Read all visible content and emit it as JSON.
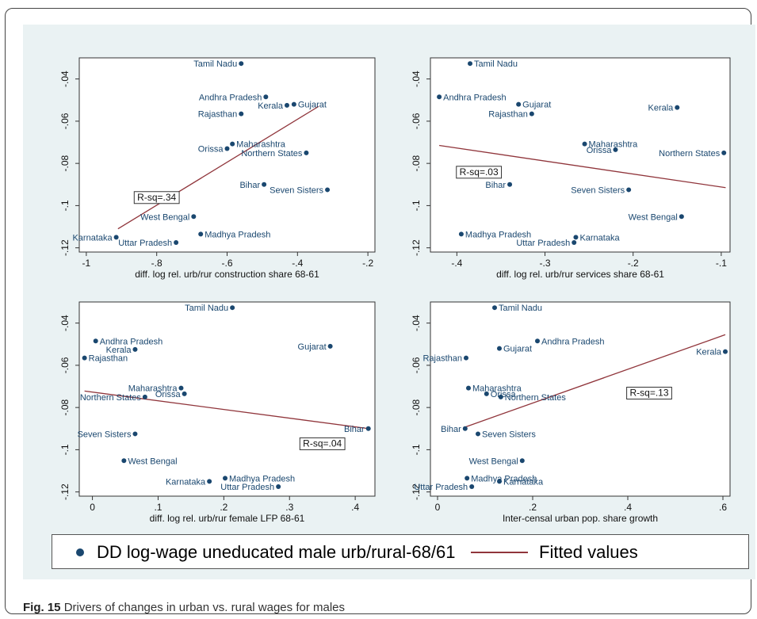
{
  "caption": {
    "label": "Fig. 15",
    "text": "Drivers of changes in urban vs. rural wages for males"
  },
  "legend": {
    "dot_label": "DD log-wage uneducated male urb/rural-68/61",
    "line_label": "Fitted values"
  },
  "colors": {
    "background": "#eaf2f3",
    "marker": "#1a476f",
    "fit_line": "#90353b",
    "label_text": "#1a476f"
  },
  "chart_data": [
    {
      "type": "scatter",
      "title": "",
      "xlabel": "diff. log rel. urb/rur construction share 68-61",
      "ylabel": "",
      "xlim": [
        -1.02,
        -0.18
      ],
      "ylim": [
        -0.122,
        -0.03
      ],
      "xticks": [
        -1,
        -0.8,
        -0.6,
        -0.4,
        -0.2
      ],
      "xtick_labels": [
        "-1",
        "-.8",
        "-.6",
        "-.4",
        "-.2"
      ],
      "yticks": [
        -0.04,
        -0.06,
        -0.08,
        -0.1,
        -0.12
      ],
      "ytick_labels": [
        "-.04",
        "-.06",
        "-.08",
        "-.1",
        "-.12"
      ],
      "rsq_label": "R-sq=.34",
      "rsq_pos": [
        -0.8,
        -0.096
      ],
      "fit": {
        "x": [
          -0.91,
          -0.34
        ],
        "y": [
          -0.111,
          -0.053
        ]
      },
      "points": [
        {
          "label": "Tamil Nadu",
          "x": -0.56,
          "y": -0.0327,
          "side": "left"
        },
        {
          "label": "Andhra Pradesh",
          "x": -0.49,
          "y": -0.0485,
          "side": "left"
        },
        {
          "label": "Kerala",
          "x": -0.43,
          "y": -0.0525,
          "side": "left"
        },
        {
          "label": "Gujarat",
          "x": -0.41,
          "y": -0.052,
          "side": "right"
        },
        {
          "label": "Rajasthan",
          "x": -0.56,
          "y": -0.0565,
          "side": "left"
        },
        {
          "label": "Orissa",
          "x": -0.6,
          "y": -0.073,
          "side": "left"
        },
        {
          "label": "Maharashtra",
          "x": -0.585,
          "y": -0.0708,
          "side": "right"
        },
        {
          "label": "Northern States",
          "x": -0.375,
          "y": -0.075,
          "side": "left"
        },
        {
          "label": "Bihar",
          "x": -0.495,
          "y": -0.09,
          "side": "left"
        },
        {
          "label": "Seven Sisters",
          "x": -0.315,
          "y": -0.0925,
          "side": "left"
        },
        {
          "label": "West Bengal",
          "x": -0.695,
          "y": -0.1052,
          "side": "left"
        },
        {
          "label": "Madhya Pradesh",
          "x": -0.675,
          "y": -0.1135,
          "side": "right"
        },
        {
          "label": "Karnataka",
          "x": -0.915,
          "y": -0.115,
          "side": "left"
        },
        {
          "label": "Uttar Pradesh",
          "x": -0.745,
          "y": -0.1175,
          "side": "left"
        }
      ]
    },
    {
      "type": "scatter",
      "title": "",
      "xlabel": "diff. log rel. urb/rur services share 68-61",
      "ylabel": "",
      "xlim": [
        -0.43,
        -0.09
      ],
      "ylim": [
        -0.122,
        -0.03
      ],
      "xticks": [
        -0.4,
        -0.3,
        -0.2,
        -0.1
      ],
      "xtick_labels": [
        "-.4",
        "-.3",
        "-.2",
        "-.1"
      ],
      "yticks": [
        -0.04,
        -0.06,
        -0.08,
        -0.1,
        -0.12
      ],
      "ytick_labels": [
        "-.04",
        "-.06",
        "-.08",
        "-.1",
        "-.12"
      ],
      "rsq_label": "R-sq=.03",
      "rsq_pos": [
        -0.375,
        -0.084
      ],
      "fit": {
        "x": [
          -0.42,
          -0.095
        ],
        "y": [
          -0.0715,
          -0.0915
        ]
      },
      "points": [
        {
          "label": "Tamil Nadu",
          "x": -0.385,
          "y": -0.0327,
          "side": "right"
        },
        {
          "label": "Andhra Pradesh",
          "x": -0.42,
          "y": -0.0485,
          "side": "right"
        },
        {
          "label": "Gujarat",
          "x": -0.33,
          "y": -0.052,
          "side": "right"
        },
        {
          "label": "Kerala",
          "x": -0.15,
          "y": -0.0535,
          "side": "left"
        },
        {
          "label": "Rajasthan",
          "x": -0.315,
          "y": -0.0565,
          "side": "left"
        },
        {
          "label": "Maharashtra",
          "x": -0.255,
          "y": -0.0708,
          "side": "right"
        },
        {
          "label": "Orissa",
          "x": -0.22,
          "y": -0.0735,
          "side": "left"
        },
        {
          "label": "Northern States",
          "x": -0.097,
          "y": -0.075,
          "side": "left"
        },
        {
          "label": "Bihar",
          "x": -0.34,
          "y": -0.09,
          "side": "left"
        },
        {
          "label": "Seven Sisters",
          "x": -0.205,
          "y": -0.0925,
          "side": "left"
        },
        {
          "label": "West Bengal",
          "x": -0.145,
          "y": -0.1052,
          "side": "left"
        },
        {
          "label": "Madhya Pradesh",
          "x": -0.395,
          "y": -0.1135,
          "side": "right"
        },
        {
          "label": "Karnataka",
          "x": -0.265,
          "y": -0.115,
          "side": "right"
        },
        {
          "label": "Uttar Pradesh",
          "x": -0.267,
          "y": -0.1175,
          "side": "left"
        }
      ]
    },
    {
      "type": "scatter",
      "title": "",
      "xlabel": "diff. log rel. urb/rur female LFP 68-61",
      "ylabel": "",
      "xlim": [
        -0.02,
        0.43
      ],
      "ylim": [
        -0.122,
        -0.03
      ],
      "xticks": [
        0,
        0.1,
        0.2,
        0.3,
        0.4
      ],
      "xtick_labels": [
        "0",
        ".1",
        ".2",
        ".3",
        ".4"
      ],
      "yticks": [
        -0.04,
        -0.06,
        -0.08,
        -0.1,
        -0.12
      ],
      "ytick_labels": [
        "-.04",
        "-.06",
        "-.08",
        "-.1",
        "-.12"
      ],
      "rsq_label": "R-sq=.04",
      "rsq_pos": [
        0.35,
        -0.097
      ],
      "fit": {
        "x": [
          -0.012,
          0.42
        ],
        "y": [
          -0.0722,
          -0.09
        ]
      },
      "points": [
        {
          "label": "Tamil Nadu",
          "x": 0.213,
          "y": -0.0327,
          "side": "left"
        },
        {
          "label": "Andhra Pradesh",
          "x": 0.005,
          "y": -0.0485,
          "side": "right"
        },
        {
          "label": "Kerala",
          "x": 0.065,
          "y": -0.0525,
          "side": "left"
        },
        {
          "label": "Gujarat",
          "x": 0.362,
          "y": -0.051,
          "side": "left"
        },
        {
          "label": "Rajasthan",
          "x": -0.012,
          "y": -0.0565,
          "side": "right"
        },
        {
          "label": "Maharashtra",
          "x": 0.135,
          "y": -0.0708,
          "side": "left"
        },
        {
          "label": "Orissa",
          "x": 0.14,
          "y": -0.0735,
          "side": "left"
        },
        {
          "label": "Northern States",
          "x": 0.08,
          "y": -0.075,
          "side": "left"
        },
        {
          "label": "Bihar",
          "x": 0.42,
          "y": -0.09,
          "side": "left"
        },
        {
          "label": "Seven Sisters",
          "x": 0.065,
          "y": -0.0925,
          "side": "left"
        },
        {
          "label": "West Bengal",
          "x": 0.048,
          "y": -0.1052,
          "side": "right"
        },
        {
          "label": "Madhya Pradesh",
          "x": 0.202,
          "y": -0.1135,
          "side": "right"
        },
        {
          "label": "Karnataka",
          "x": 0.178,
          "y": -0.115,
          "side": "left"
        },
        {
          "label": "Uttar Pradesh",
          "x": 0.283,
          "y": -0.1175,
          "side": "left"
        }
      ]
    },
    {
      "type": "scatter",
      "title": "",
      "xlabel": "Inter-censal urban pop. share growth",
      "ylabel": "",
      "xlim": [
        -0.015,
        0.615
      ],
      "ylim": [
        -0.122,
        -0.03
      ],
      "xticks": [
        0,
        0.2,
        0.4,
        0.6
      ],
      "xtick_labels": [
        "0",
        ".2",
        ".4",
        ".6"
      ],
      "yticks": [
        -0.04,
        -0.06,
        -0.08,
        -0.1,
        -0.12
      ],
      "ytick_labels": [
        "-.04",
        "-.06",
        "-.08",
        "-.1",
        "-.12"
      ],
      "rsq_label": "R-sq=.13",
      "rsq_pos": [
        0.445,
        -0.073
      ],
      "fit": {
        "x": [
          0.055,
          0.605
        ],
        "y": [
          -0.0895,
          -0.0455
        ]
      },
      "points": [
        {
          "label": "Tamil Nadu",
          "x": 0.12,
          "y": -0.0327,
          "side": "right"
        },
        {
          "label": "Andhra Pradesh",
          "x": 0.21,
          "y": -0.0485,
          "side": "right"
        },
        {
          "label": "Gujarat",
          "x": 0.13,
          "y": -0.052,
          "side": "right"
        },
        {
          "label": "Kerala",
          "x": 0.605,
          "y": -0.0535,
          "side": "left"
        },
        {
          "label": "Rajasthan",
          "x": 0.06,
          "y": -0.0565,
          "side": "left"
        },
        {
          "label": "Maharashtra",
          "x": 0.065,
          "y": -0.0708,
          "side": "right"
        },
        {
          "label": "Orissa",
          "x": 0.103,
          "y": -0.0735,
          "side": "right"
        },
        {
          "label": "Northern States",
          "x": 0.133,
          "y": -0.075,
          "side": "right"
        },
        {
          "label": "Bihar",
          "x": 0.058,
          "y": -0.09,
          "side": "left"
        },
        {
          "label": "Seven Sisters",
          "x": 0.085,
          "y": -0.0925,
          "side": "right"
        },
        {
          "label": "West Bengal",
          "x": 0.178,
          "y": -0.1052,
          "side": "left"
        },
        {
          "label": "Madhya Pradesh",
          "x": 0.062,
          "y": -0.1135,
          "side": "right"
        },
        {
          "label": "Karnataka",
          "x": 0.13,
          "y": -0.115,
          "side": "right"
        },
        {
          "label": "Uttar Pradesh",
          "x": 0.072,
          "y": -0.1175,
          "side": "left"
        }
      ]
    }
  ]
}
